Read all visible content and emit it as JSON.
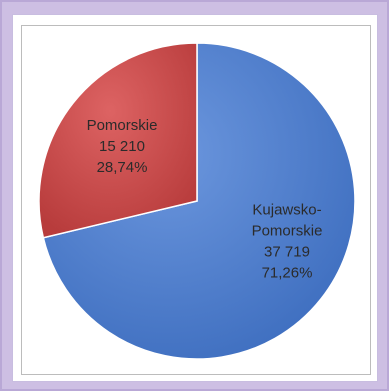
{
  "chart_data": {
    "type": "pie",
    "series": [
      {
        "values": [
          {
            "label": "Kujawsko-Pomorskie",
            "value_text": "37 719",
            "value": 37719,
            "percent": "71,26%",
            "color": "#4a78c8"
          },
          {
            "label": "Pomorskie",
            "value_text": "15 210",
            "value": 15210,
            "percent": "28,74%",
            "color": "#c84444"
          }
        ]
      }
    ],
    "legend": "none",
    "start_angle_deg": 0,
    "direction": "clockwise"
  }
}
